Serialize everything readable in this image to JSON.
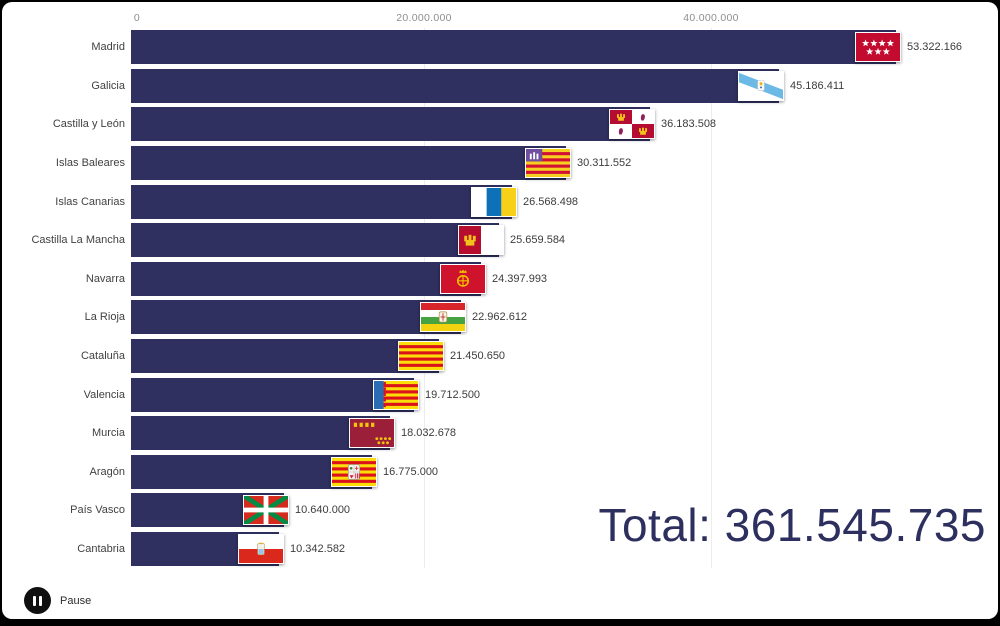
{
  "chart_data": {
    "type": "bar",
    "orientation": "horizontal",
    "categories": [
      "Madrid",
      "Galicia",
      "Castilla y León",
      "Islas Baleares",
      "Islas Canarias",
      "Castilla La Mancha",
      "Navarra",
      "La Rioja",
      "Cataluña",
      "Valencia",
      "Murcia",
      "Aragón",
      "País Vasco",
      "Cantabria"
    ],
    "values": [
      53322166,
      45186411,
      36183508,
      30311552,
      26568498,
      25659584,
      24397993,
      22962612,
      21450650,
      19712500,
      18032678,
      16775000,
      10640000,
      10342582
    ],
    "value_labels": [
      "53.322.166",
      "45.186.411",
      "36.183.508",
      "30.311.552",
      "26.568.498",
      "25.659.584",
      "24.397.993",
      "22.962.612",
      "21.450.650",
      "19.712.500",
      "18.032.678",
      "16.775.000",
      "10.640.000",
      "10.342.582"
    ],
    "x_axis_ticks": [
      "0",
      "20.000.000",
      "40.000.000"
    ],
    "x_axis_tick_values": [
      0,
      20000000,
      40000000
    ],
    "xlim": [
      0,
      60000000
    ],
    "bar_color": "#2f3060",
    "grid": "vertical-light",
    "legend": "none",
    "flag_icons": [
      "madrid-flag",
      "galicia-flag",
      "castilla-y-leon-flag",
      "islas-baleares-flag",
      "islas-canarias-flag",
      "castilla-la-mancha-flag",
      "navarra-flag",
      "la-rioja-flag",
      "cataluna-flag",
      "valencia-flag",
      "murcia-flag",
      "aragon-flag",
      "pais-vasco-flag",
      "cantabria-flag"
    ]
  },
  "total": {
    "label": "Total: 361.545.735"
  },
  "controls": {
    "pause_label": "Pause"
  },
  "colors": {
    "total_text": "#2d2f5e",
    "axis_text": "#8f8f8f",
    "label_text": "#414141"
  }
}
